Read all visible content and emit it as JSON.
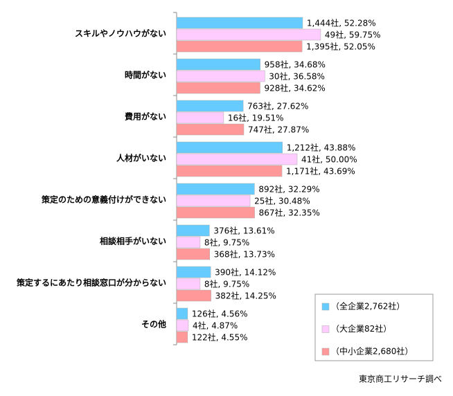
{
  "chart_data": {
    "type": "bar",
    "orientation": "horizontal",
    "categories": [
      "スキルやノウハウがない",
      "時間がない",
      "費用がない",
      "人材がいない",
      "策定のための意義付けができない",
      "相談相手がいない",
      "策定するにあたり相談窓口が分からない",
      "その他"
    ],
    "series": [
      {
        "name": "（全企業2,762社）",
        "color": "#66ccff",
        "values": [
          52.28,
          34.68,
          27.62,
          43.88,
          32.29,
          13.61,
          14.12,
          4.56
        ],
        "value_labels": [
          "1,444社, 52.28%",
          "958社, 34.68%",
          "763社, 27.62%",
          "1,212社, 43.88%",
          "892社, 32.29%",
          "376社, 13.61%",
          "390社, 14.12%",
          "126社, 4.56%"
        ]
      },
      {
        "name": "（大企業82社）",
        "color": "#ffccff",
        "values": [
          59.75,
          36.58,
          19.51,
          50.0,
          30.48,
          9.75,
          9.75,
          4.87
        ],
        "value_labels": [
          "49社, 59.75%",
          "30社, 36.58%",
          "16社, 19.51%",
          "41社, 50.00%",
          "25社, 30.48%",
          "8社, 9.75%",
          "8社, 9.75%",
          "4社, 4.87%"
        ]
      },
      {
        "name": "（中小企業2,680社）",
        "color": "#ff9999",
        "values": [
          52.05,
          34.62,
          27.87,
          43.69,
          32.35,
          13.73,
          14.25,
          4.55
        ],
        "value_labels": [
          "1,395社, 52.05%",
          "928社, 34.62%",
          "747社, 27.87%",
          "1,171社, 43.69%",
          "867社, 32.35%",
          "368社, 13.73%",
          "382社, 14.25%",
          "122社, 4.55%"
        ]
      }
    ],
    "legend": "lower right",
    "source": "東京商工リサーチ調べ"
  }
}
